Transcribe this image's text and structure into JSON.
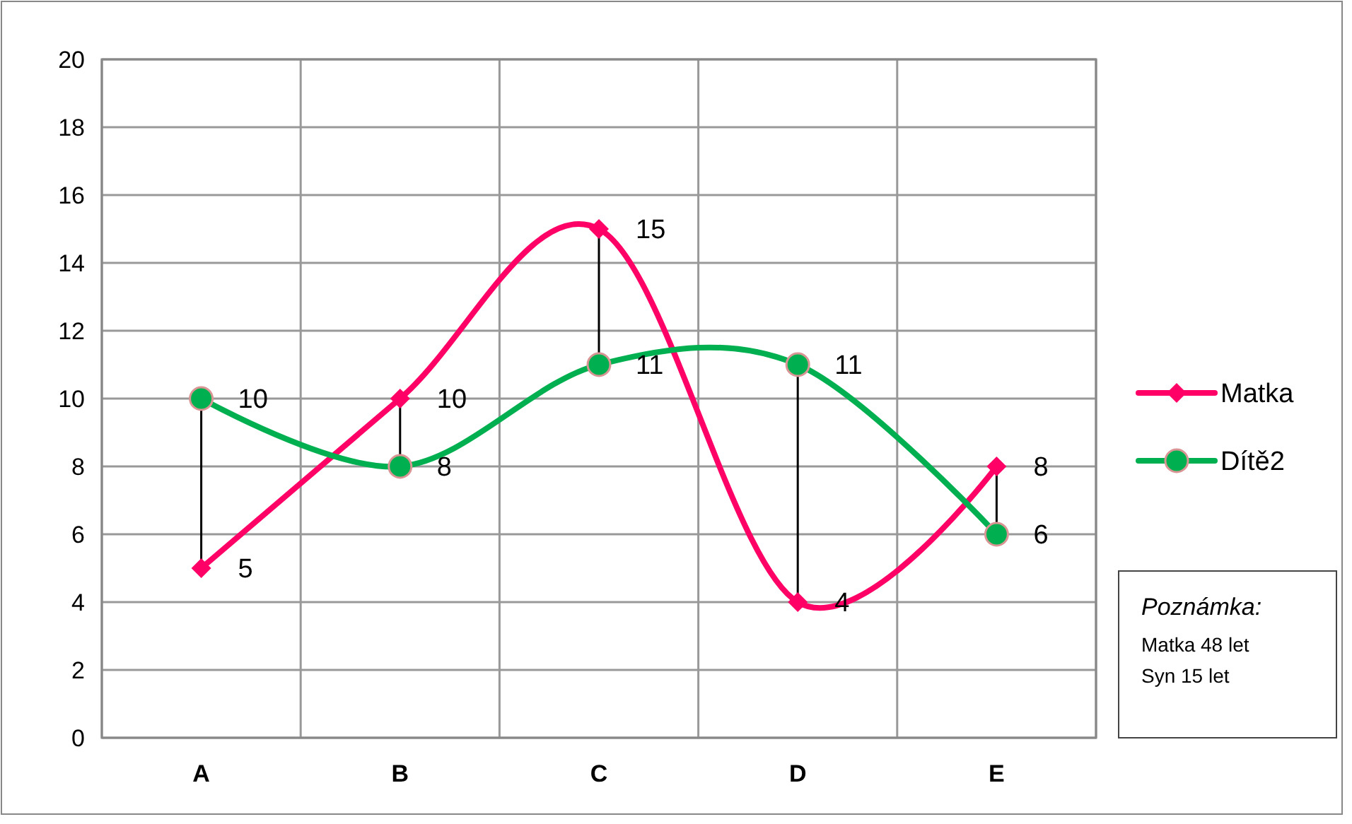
{
  "chart_data": {
    "type": "line",
    "categories": [
      "A",
      "B",
      "C",
      "D",
      "E"
    ],
    "series": [
      {
        "name": "Matka",
        "color": "#ff0066",
        "values": [
          5,
          10,
          15,
          4,
          8
        ],
        "marker": "diamond"
      },
      {
        "name": "Dítě2",
        "color": "#00b050",
        "values": [
          10,
          8,
          11,
          11,
          6
        ],
        "marker": "circle"
      }
    ],
    "ylim": [
      0,
      20
    ],
    "yticks": [
      0,
      2,
      4,
      6,
      8,
      10,
      12,
      14,
      16,
      18,
      20
    ],
    "grid": true,
    "legend": "right",
    "data_labels": true,
    "annotations": [
      "Poznámka:",
      "Matka 48 let",
      "Syn 15 let"
    ]
  }
}
